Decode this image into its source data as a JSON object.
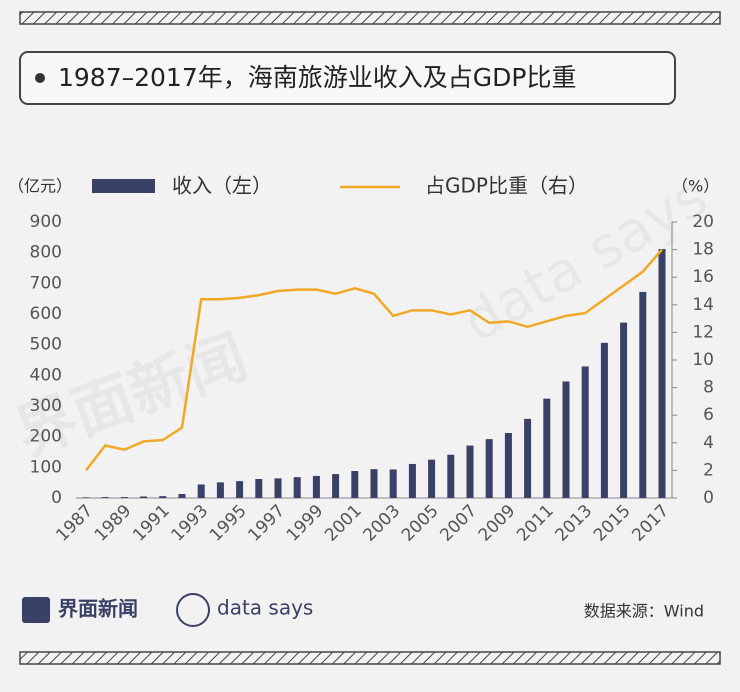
{
  "header": {
    "title": "1987–2017年，海南旅游业收入及占GDP比重"
  },
  "chart_data": {
    "type": "bar-line",
    "y_label": "（亿元）",
    "y2_label": "（%）",
    "categories": [
      "1987",
      null,
      "1989",
      null,
      "1991",
      null,
      "1993",
      null,
      "1995",
      null,
      "1997",
      null,
      "1999",
      null,
      "2001",
      null,
      "2003",
      null,
      "2005",
      null,
      "2007",
      null,
      "2009",
      null,
      "2011",
      null,
      "2013",
      null,
      "2015",
      null,
      "2017"
    ],
    "series": [
      {
        "name": "收入（左）",
        "type": "bar",
        "color": "#3a4166",
        "values": [
          2,
          3,
          3,
          5,
          6,
          13,
          44,
          51,
          55,
          62,
          64,
          68,
          72,
          78,
          88,
          94,
          93,
          111,
          125,
          141,
          171,
          192,
          212,
          258,
          324,
          380,
          429,
          506,
          572,
          672,
          812
        ]
      },
      {
        "name": "占GDP比重（右）",
        "type": "line",
        "axis": "y2",
        "color": "#f0a827",
        "values": [
          2.0,
          3.8,
          3.5,
          4.1,
          4.2,
          5.1,
          14.4,
          14.4,
          14.5,
          14.7,
          15.0,
          15.1,
          15.1,
          14.8,
          15.2,
          14.8,
          13.2,
          13.6,
          13.6,
          13.3,
          13.6,
          12.7,
          12.8,
          12.4,
          12.8,
          13.2,
          13.4,
          14.4,
          15.4,
          16.4,
          18.0
        ]
      }
    ],
    "ylim": [
      0,
      900
    ],
    "yticks": [
      0,
      100,
      200,
      300,
      400,
      500,
      600,
      700,
      800,
      900
    ],
    "y2lim": [
      0,
      20
    ],
    "y2ticks": [
      0,
      2,
      4,
      6,
      8,
      10,
      12,
      14,
      16,
      18,
      20
    ]
  },
  "footer": {
    "brand": "界面新闻",
    "brand2": "data says",
    "source": "数据来源：Wind"
  }
}
